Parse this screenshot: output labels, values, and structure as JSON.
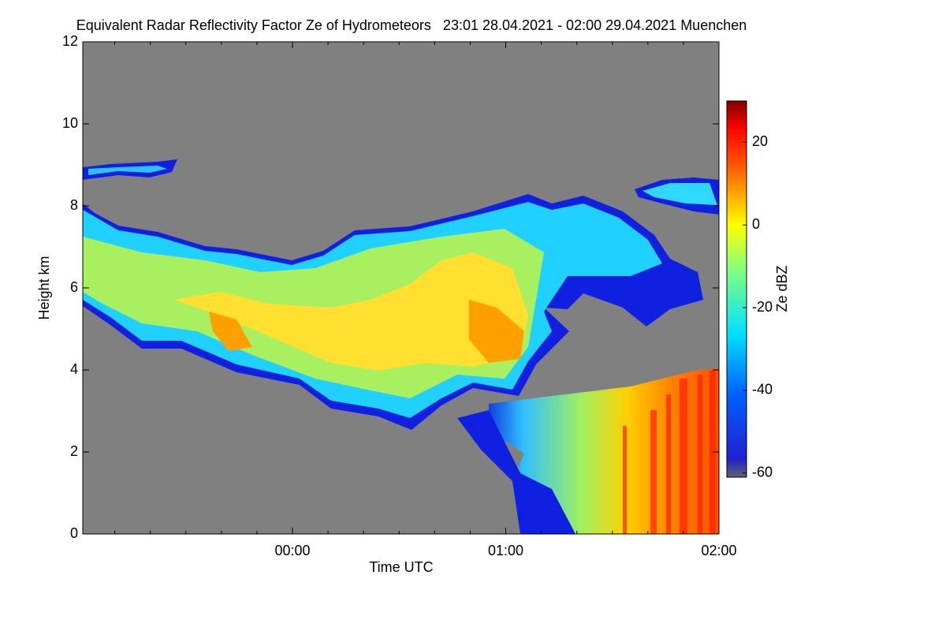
{
  "chart_data": {
    "type": "heatmap",
    "title": "Equivalent Radar Reflectivity Factor Ze of Hydrometeors   23:01 28.04.2021 - 02:00 29.04.2021 Muenchen",
    "xlabel": "Time UTC",
    "ylabel": "Height km",
    "xlim": [
      -59,
      120
    ],
    "xticks": [
      {
        "value": 0,
        "label": "00:00"
      },
      {
        "value": 60,
        "label": "01:00"
      },
      {
        "value": 120,
        "label": "02:00"
      }
    ],
    "xminorticks": [
      -50,
      -40,
      -30,
      -20,
      -10,
      10,
      20,
      30,
      40,
      50,
      70,
      80,
      90,
      100,
      110
    ],
    "ylim": [
      0,
      12
    ],
    "yticks": [
      0,
      2,
      4,
      6,
      8,
      10,
      12
    ],
    "colorbar": {
      "label": "Ze dBZ",
      "lim": [
        -61,
        30
      ],
      "ticks": [
        -60,
        -40,
        -20,
        0,
        20
      ]
    }
  }
}
